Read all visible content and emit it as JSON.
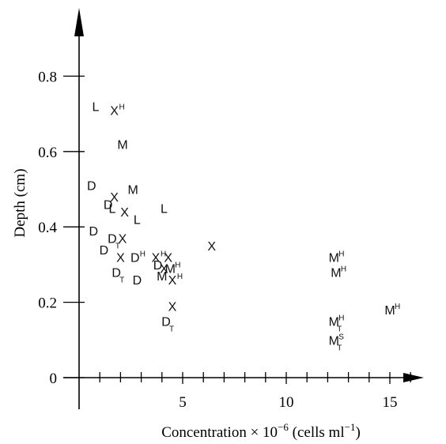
{
  "chart_data": {
    "type": "scatter",
    "title": "",
    "xlabel_main": "Concentration × 10",
    "xlabel_exp": "−6",
    "xlabel_tail1": " (cells ml",
    "xlabel_exp2": "−1",
    "xlabel_tail2": ")",
    "ylabel": "Depth (cm)",
    "xlim": [
      -5.2,
      17.5
    ],
    "ylim": [
      -0.07,
      0.97
    ],
    "x_ticks": [
      5,
      10,
      15
    ],
    "y_ticks": [
      0,
      0.2,
      0.4,
      0.6,
      0.8
    ],
    "x_tick_labels": [
      "5",
      "10",
      "15"
    ],
    "y_tick_labels": [
      "0",
      "0.2",
      "0.4",
      "0.6",
      "0.8"
    ],
    "x_minor_step": 0.5,
    "grid": false,
    "legend": "none",
    "points": [
      {
        "x": 0.8,
        "y": 0.72,
        "m": "L",
        "sup": "",
        "sub": ""
      },
      {
        "x": 1.7,
        "y": 0.71,
        "m": "X",
        "sup": "H",
        "sub": ""
      },
      {
        "x": 2.1,
        "y": 0.62,
        "m": "M",
        "sup": "",
        "sub": ""
      },
      {
        "x": 0.6,
        "y": 0.51,
        "m": "D",
        "sup": "",
        "sub": ""
      },
      {
        "x": 1.7,
        "y": 0.48,
        "m": "X",
        "sup": "",
        "sub": ""
      },
      {
        "x": 2.6,
        "y": 0.5,
        "m": "M",
        "sup": "",
        "sub": ""
      },
      {
        "x": 1.4,
        "y": 0.46,
        "m": "D",
        "sup": "",
        "sub": ""
      },
      {
        "x": 1.6,
        "y": 0.45,
        "m": "L",
        "sup": "",
        "sub": ""
      },
      {
        "x": 2.2,
        "y": 0.44,
        "m": "X",
        "sup": "",
        "sub": ""
      },
      {
        "x": 2.8,
        "y": 0.42,
        "m": "L",
        "sup": "",
        "sub": ""
      },
      {
        "x": 4.1,
        "y": 0.45,
        "m": "L",
        "sup": "",
        "sub": ""
      },
      {
        "x": 0.7,
        "y": 0.39,
        "m": "D",
        "sup": "",
        "sub": ""
      },
      {
        "x": 1.6,
        "y": 0.37,
        "m": "D",
        "sup": "",
        "sub": "T"
      },
      {
        "x": 2.1,
        "y": 0.37,
        "m": "X",
        "sup": "",
        "sub": ""
      },
      {
        "x": 1.2,
        "y": 0.34,
        "m": "D",
        "sup": "",
        "sub": ""
      },
      {
        "x": 2.0,
        "y": 0.32,
        "m": "X",
        "sup": "",
        "sub": ""
      },
      {
        "x": 2.7,
        "y": 0.32,
        "m": "D",
        "sup": "H",
        "sub": ""
      },
      {
        "x": 3.7,
        "y": 0.32,
        "m": "X",
        "sup": "H",
        "sub": ""
      },
      {
        "x": 3.8,
        "y": 0.3,
        "m": "D",
        "sup": "",
        "sub": ""
      },
      {
        "x": 4.1,
        "y": 0.29,
        "m": "X",
        "sup": "",
        "sub": ""
      },
      {
        "x": 4.3,
        "y": 0.32,
        "m": "X",
        "sup": "",
        "sub": ""
      },
      {
        "x": 4.4,
        "y": 0.29,
        "m": "M",
        "sup": "H",
        "sub": ""
      },
      {
        "x": 4.0,
        "y": 0.27,
        "m": "M",
        "sup": "",
        "sub": ""
      },
      {
        "x": 4.5,
        "y": 0.26,
        "m": "X",
        "sup": "H",
        "sub": ""
      },
      {
        "x": 1.8,
        "y": 0.28,
        "m": "D",
        "sup": "",
        "sub": "T"
      },
      {
        "x": 2.8,
        "y": 0.26,
        "m": "D",
        "sup": "",
        "sub": ""
      },
      {
        "x": 6.4,
        "y": 0.35,
        "m": "X",
        "sup": "",
        "sub": ""
      },
      {
        "x": 4.5,
        "y": 0.19,
        "m": "X",
        "sup": "",
        "sub": ""
      },
      {
        "x": 4.2,
        "y": 0.15,
        "m": "D",
        "sup": "",
        "sub": "T"
      },
      {
        "x": 12.3,
        "y": 0.32,
        "m": "M",
        "sup": "H",
        "sub": ""
      },
      {
        "x": 12.4,
        "y": 0.28,
        "m": "M",
        "sup": "H",
        "sub": ""
      },
      {
        "x": 12.3,
        "y": 0.15,
        "m": "M",
        "sup": "H",
        "sub": "T"
      },
      {
        "x": 12.3,
        "y": 0.1,
        "m": "M",
        "sup": "S",
        "sub": "T"
      },
      {
        "x": 15.0,
        "y": 0.18,
        "m": "M",
        "sup": "H",
        "sub": ""
      }
    ]
  }
}
